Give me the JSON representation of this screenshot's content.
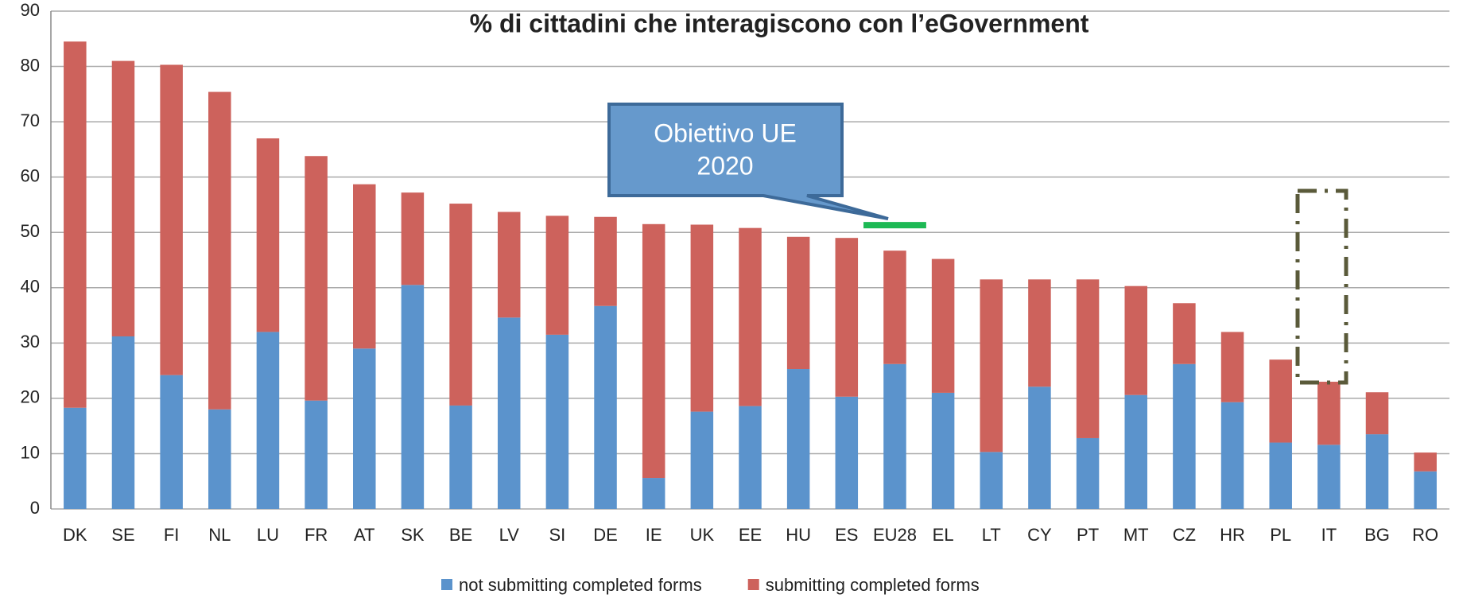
{
  "chart_data": {
    "type": "stacked_bar",
    "title": "% di cittadini che interagiscono con l’eGovernment",
    "categories": [
      "DK",
      "SE",
      "FI",
      "NL",
      "LU",
      "FR",
      "AT",
      "SK",
      "BE",
      "LV",
      "SI",
      "DE",
      "IE",
      "UK",
      "EE",
      "HU",
      "ES",
      "EU28",
      "EL",
      "LT",
      "CY",
      "PT",
      "MT",
      "CZ",
      "HR",
      "PL",
      "IT",
      "BG",
      "RO"
    ],
    "series": [
      {
        "name": "not submitting completed forms",
        "color": "#5b93cc",
        "values": [
          18.3,
          31.2,
          24.2,
          18,
          32,
          19.6,
          29,
          40.5,
          18.7,
          34.6,
          31.5,
          36.7,
          5.6,
          17.6,
          18.6,
          25.3,
          20.3,
          26.2,
          21,
          10.3,
          22.1,
          12.8,
          20.6,
          26.2,
          19.3,
          12,
          11.6,
          13.5,
          6.8
        ]
      },
      {
        "name": "submitting completed forms",
        "color": "#cd625c",
        "values": [
          66.2,
          49.8,
          56.1,
          57.4,
          35,
          44.2,
          29.7,
          16.7,
          36.5,
          19.1,
          21.5,
          16.1,
          45.9,
          33.8,
          32.2,
          23.9,
          28.7,
          20.5,
          24.2,
          31.2,
          19.4,
          28.7,
          19.7,
          11,
          12.7,
          15,
          11.4,
          7.6,
          3.4
        ]
      }
    ],
    "ylim": [
      0,
      90
    ],
    "yticks": [
      0,
      10,
      20,
      30,
      40,
      50,
      60,
      70,
      80,
      90
    ],
    "grid": true,
    "target": 51.3,
    "target_color": "#1db954",
    "annotation": [
      "Obiettivo UE",
      "2020"
    ],
    "legend": "bottom"
  }
}
